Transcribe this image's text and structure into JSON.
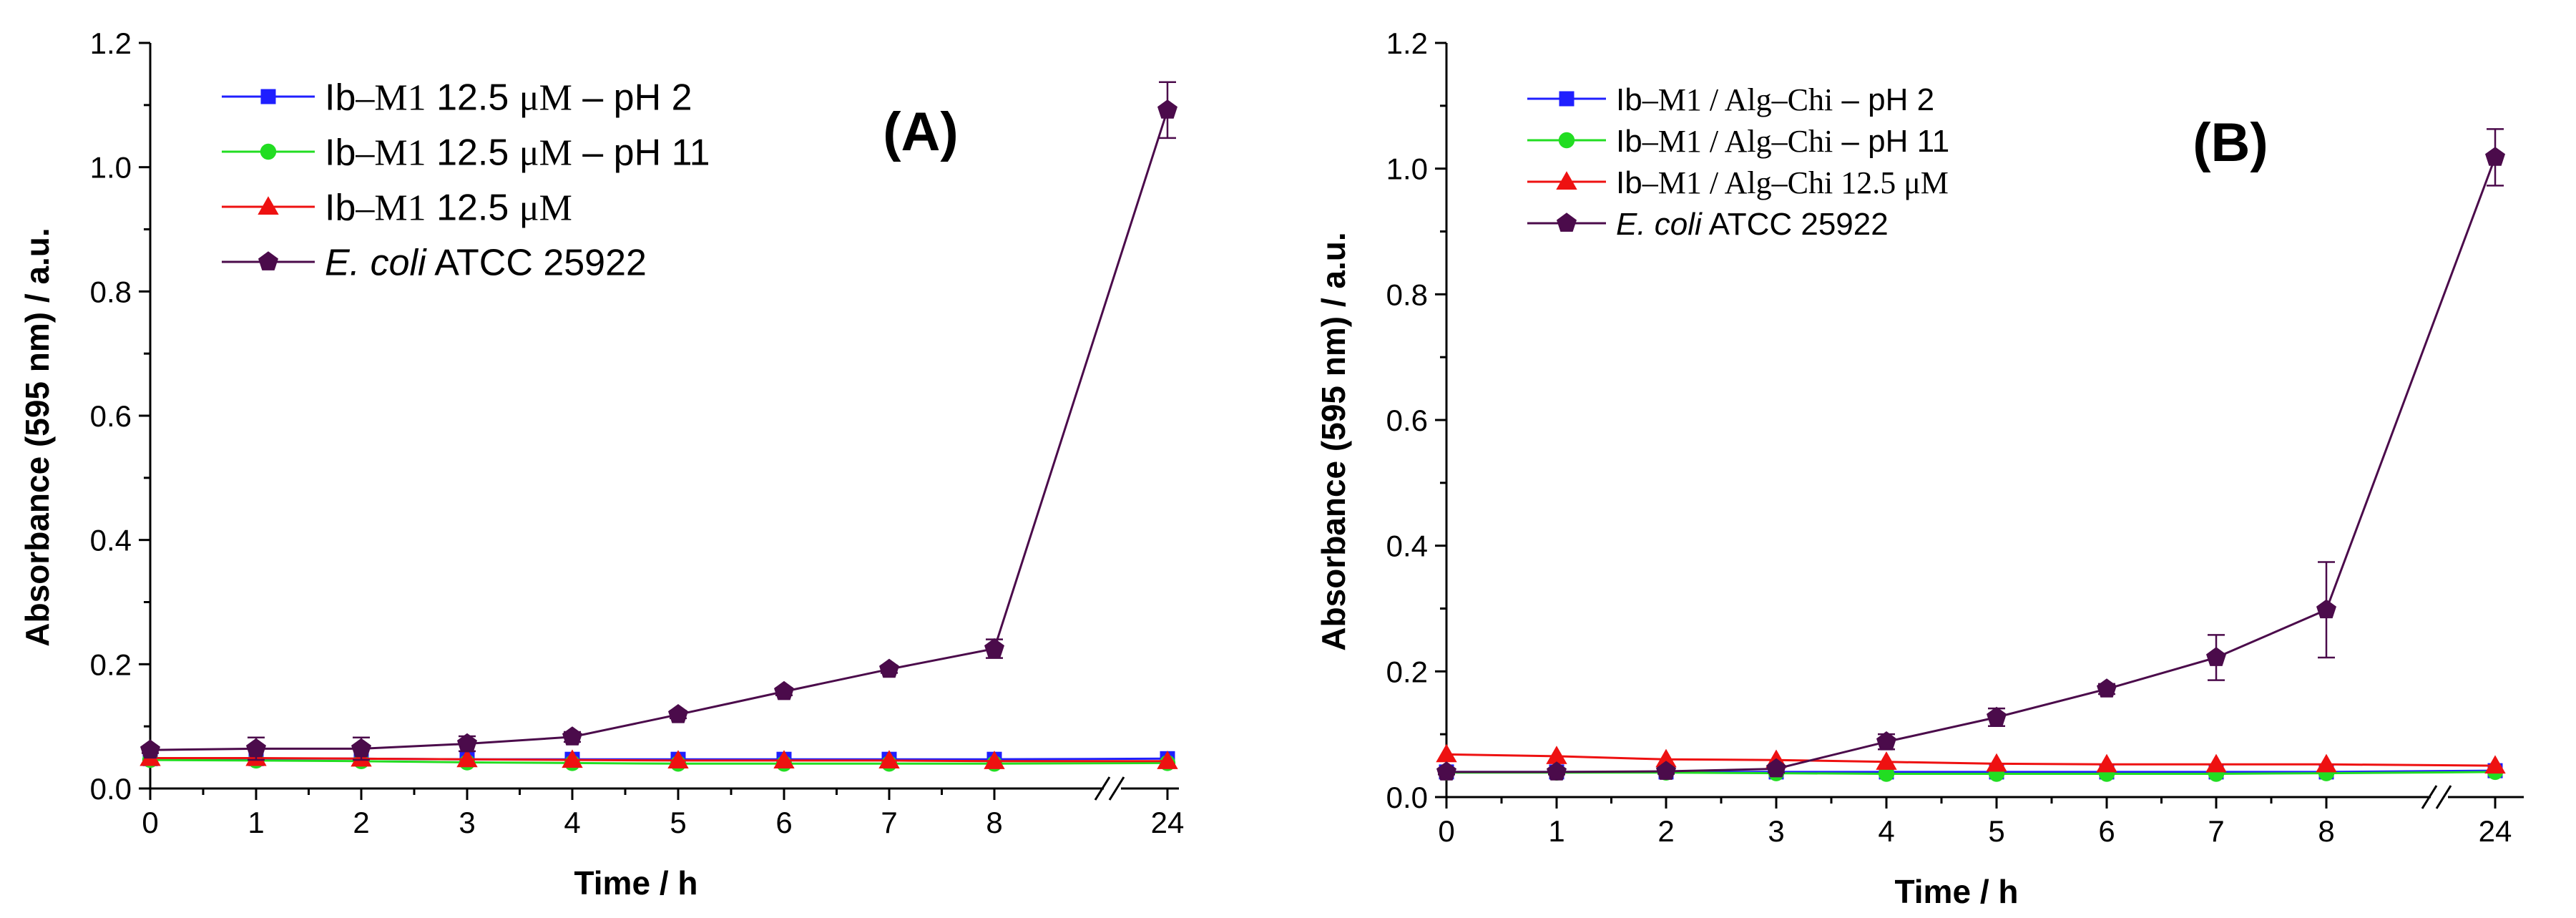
{
  "chart_data": [
    {
      "panel": "A",
      "type": "line",
      "title": "(A)",
      "xlabel": "Time / h",
      "ylabel": "Absorbance (595 nm) / a.u.",
      "ylim": [
        0,
        1.2
      ],
      "y_ticks": [
        "0.0",
        "0.2",
        "0.4",
        "0.6",
        "0.8",
        "1.0",
        "1.2"
      ],
      "x": [
        0,
        1,
        2,
        3,
        4,
        5,
        6,
        7,
        8,
        24
      ],
      "x_ticks": [
        "0",
        "1",
        "2",
        "3",
        "4",
        "5",
        "6",
        "7",
        "8",
        "24"
      ],
      "axis_break": "between 8 and 24",
      "legend_position": "top-left",
      "series": [
        {
          "name": "Ib–M1 12.5 μM – pH 2",
          "legend_parts": [
            [
              "Ib",
              "sans"
            ],
            [
              "–M1",
              "serif"
            ],
            [
              " 12.5 ",
              "sans"
            ],
            [
              "μM",
              "serif"
            ],
            [
              " – pH 2",
              "sans"
            ]
          ],
          "color": "#1f1fff",
          "marker": "square",
          "values": [
            0.048,
            0.048,
            0.048,
            0.047,
            0.047,
            0.047,
            0.047,
            0.047,
            0.047,
            0.048
          ]
        },
        {
          "name": "Ib–M1 12.5 μM – pH 11",
          "legend_parts": [
            [
              "Ib",
              "sans"
            ],
            [
              "–M1",
              "serif"
            ],
            [
              " 12.5 ",
              "sans"
            ],
            [
              "μM",
              "serif"
            ],
            [
              " – pH 11",
              "sans"
            ]
          ],
          "color": "#22dd22",
          "marker": "circle",
          "values": [
            0.046,
            0.045,
            0.044,
            0.042,
            0.041,
            0.04,
            0.04,
            0.04,
            0.04,
            0.041
          ]
        },
        {
          "name": "Ib–M1 12.5 μM",
          "legend_parts": [
            [
              "Ib",
              "sans"
            ],
            [
              "–M1",
              "serif"
            ],
            [
              " 12.5 ",
              "sans"
            ],
            [
              "μM",
              "serif"
            ]
          ],
          "color": "#ee1111",
          "marker": "triangle",
          "values": [
            0.049,
            0.049,
            0.048,
            0.047,
            0.046,
            0.045,
            0.045,
            0.045,
            0.044,
            0.044
          ]
        },
        {
          "name": "E. coli ATCC 25922",
          "legend_parts": [
            [
              "E. coli",
              "italic"
            ],
            [
              " ATCC 25922",
              "sans"
            ]
          ],
          "color": "#4b0b4b",
          "marker": "pentagon",
          "values": [
            0.062,
            0.064,
            0.064,
            0.072,
            0.083,
            0.119,
            0.156,
            0.192,
            0.225,
            1.092
          ],
          "errors": [
            0.005,
            0.018,
            0.018,
            0.012,
            0.008,
            0.006,
            0.006,
            0.006,
            0.015,
            0.045
          ]
        }
      ]
    },
    {
      "panel": "B",
      "type": "line",
      "title": "(B)",
      "xlabel": "Time / h",
      "ylabel": "Absorbance (595 nm) / a.u.",
      "ylim": [
        0,
        1.2
      ],
      "y_ticks": [
        "0.0",
        "0.2",
        "0.4",
        "0.6",
        "0.8",
        "1.0",
        "1.2"
      ],
      "x": [
        0,
        1,
        2,
        3,
        4,
        5,
        6,
        7,
        8,
        24
      ],
      "x_ticks": [
        "0",
        "1",
        "2",
        "3",
        "4",
        "5",
        "6",
        "7",
        "8",
        "24"
      ],
      "axis_break": "between 8 and 24",
      "legend_position": "top-left",
      "series": [
        {
          "name": "Ib–M1 / Alg–Chi – pH 2",
          "legend_parts": [
            [
              "Ib",
              "sans"
            ],
            [
              "–M1 / Alg–Chi",
              "serif"
            ],
            [
              " – pH 2",
              "sans"
            ]
          ],
          "color": "#1f1fff",
          "marker": "square",
          "values": [
            0.04,
            0.04,
            0.04,
            0.04,
            0.04,
            0.04,
            0.04,
            0.04,
            0.04,
            0.042
          ]
        },
        {
          "name": "Ib–M1 / Alg–Chi – pH 11",
          "legend_parts": [
            [
              "Ib",
              "sans"
            ],
            [
              "–M1 / Alg–Chi",
              "serif"
            ],
            [
              " – pH 11",
              "sans"
            ]
          ],
          "color": "#22dd22",
          "marker": "circle",
          "values": [
            0.039,
            0.039,
            0.039,
            0.038,
            0.037,
            0.037,
            0.037,
            0.037,
            0.038,
            0.04
          ]
        },
        {
          "name": "Ib–M1 / Alg–Chi 12.5 μM",
          "legend_parts": [
            [
              "Ib",
              "sans"
            ],
            [
              "–M1 / Alg–Chi 12.5 μM",
              "serif"
            ]
          ],
          "color": "#ee1111",
          "marker": "triangle",
          "values": [
            0.068,
            0.065,
            0.06,
            0.059,
            0.056,
            0.053,
            0.052,
            0.052,
            0.052,
            0.05
          ]
        },
        {
          "name": "E. coli ATCC 25922",
          "legend_parts": [
            [
              "E. coli",
              "italic"
            ],
            [
              " ATCC 25922",
              "sans"
            ]
          ],
          "color": "#4b0b4b",
          "marker": "pentagon",
          "values": [
            0.04,
            0.04,
            0.041,
            0.045,
            0.088,
            0.127,
            0.172,
            0.222,
            0.298,
            1.018
          ],
          "errors": [
            0.004,
            0.004,
            0.004,
            0.006,
            0.012,
            0.014,
            0.008,
            0.036,
            0.076,
            0.045
          ]
        }
      ]
    }
  ]
}
